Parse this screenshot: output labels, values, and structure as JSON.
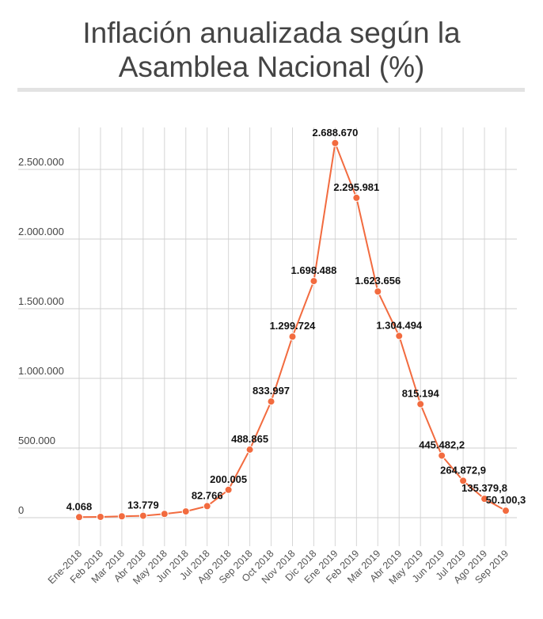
{
  "chart_data": {
    "type": "line",
    "title": "Inflación anualizada según la Asamblea Nacional (%)",
    "title_lines": [
      "Inflación anualizada según la",
      "Asamblea Nacional (%)"
    ],
    "xlabel": "",
    "ylabel": "",
    "ylim": [
      0,
      2700000
    ],
    "grid": true,
    "legend": "none",
    "y_ticks": [
      {
        "value": 0,
        "label": "0"
      },
      {
        "value": 500000,
        "label": "500.000"
      },
      {
        "value": 1000000,
        "label": "1.000.000"
      },
      {
        "value": 1500000,
        "label": "1.500.000"
      },
      {
        "value": 2000000,
        "label": "2.000.000"
      },
      {
        "value": 2500000,
        "label": "2.500.000"
      }
    ],
    "categories": [
      "Ene-2018",
      "Feb 2018",
      "Mar 2018",
      "Abr 2018",
      "May 2018",
      "Jun 2018",
      "Jul 2018",
      "Ago 2018",
      "Sep 2018",
      "Oct 2018",
      "Nov 2018",
      "Dic 2018",
      "Ene 2019",
      "Feb 2019",
      "Mar 2019",
      "Abr 2019",
      "May 2019",
      "Jun 2019",
      "Jul 2019",
      "Ago 2019",
      "Sep 2019"
    ],
    "series": [
      {
        "name": "Inflación anualizada",
        "color": "#f26b3f",
        "values": [
          4068,
          6000,
          10000,
          13779,
          27000,
          45000,
          82766,
          200005,
          488865,
          833997,
          1299724,
          1698488,
          2688670,
          2295981,
          1623656,
          1304494,
          815194,
          445482.2,
          264872.9,
          135379.8,
          50100.3
        ],
        "labels": [
          "4.068",
          "",
          "",
          "13.779",
          "",
          "",
          "82.766",
          "200.005",
          "488.865",
          "833.997",
          "1.299.724",
          "1.698.488",
          "2.688.670",
          "2.295.981",
          "1.623.656",
          "1.304.494",
          "815.194",
          "445.482,2",
          "264.872,9",
          "135.379,8",
          "50.100,3"
        ]
      }
    ]
  }
}
